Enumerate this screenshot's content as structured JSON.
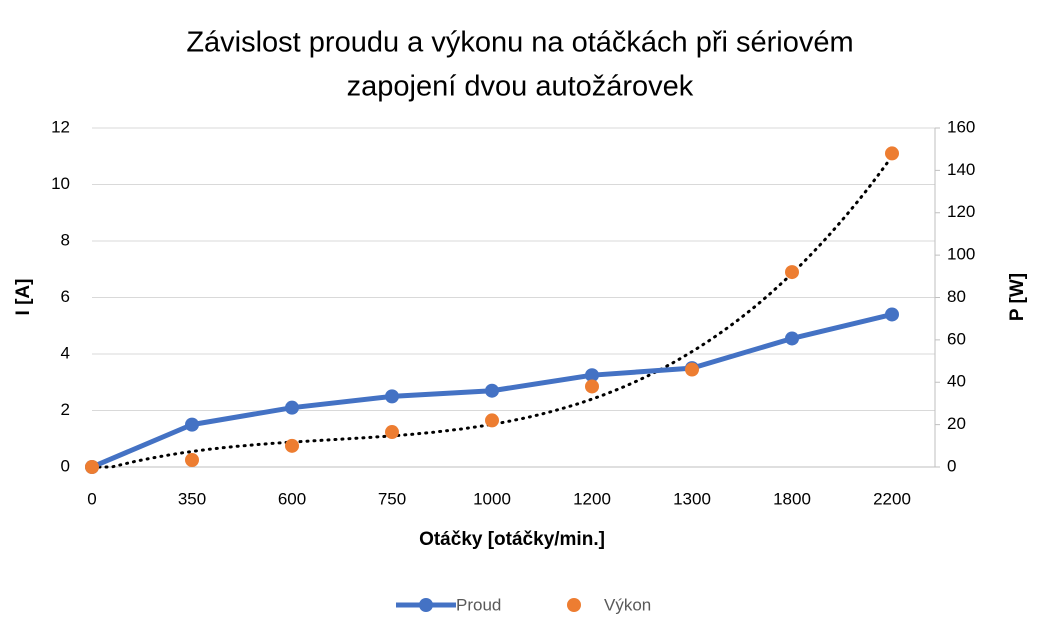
{
  "chart_data": {
    "type": "line",
    "title": [
      "Závislost proudu a výkonu na otáčkách při sériovém",
      "zapojení dvou autožárovek"
    ],
    "x_label": "Otáčky [otáčky/min.]",
    "y_label": "I [A]",
    "y2_label": "P [W]",
    "categories": [
      "0",
      "350",
      "600",
      "750",
      "1000",
      "1200",
      "1300",
      "1800",
      "2200"
    ],
    "series": [
      {
        "name": "Proud",
        "color": "#4472c4",
        "style": "line-markers",
        "values": [
          0,
          1.5,
          2.1,
          2.5,
          2.7,
          3.25,
          3.5,
          4.55,
          5.4
        ]
      },
      {
        "name": "Výkon",
        "color": "#ed7d31",
        "style": "markers",
        "axis": "y2",
        "values": [
          0,
          3.3,
          10,
          16.5,
          22,
          38,
          46,
          92,
          148
        ]
      }
    ],
    "trendline": {
      "series": 1,
      "order": 3,
      "color": "#000000"
    },
    "ylim": [
      0,
      12
    ],
    "yticks": [
      0,
      2,
      4,
      6,
      8,
      10,
      12
    ],
    "y2lim": [
      0,
      160
    ],
    "y2ticks": [
      0,
      20,
      40,
      60,
      80,
      100,
      120,
      140,
      160
    ],
    "grid": true,
    "legend": "bottom"
  }
}
